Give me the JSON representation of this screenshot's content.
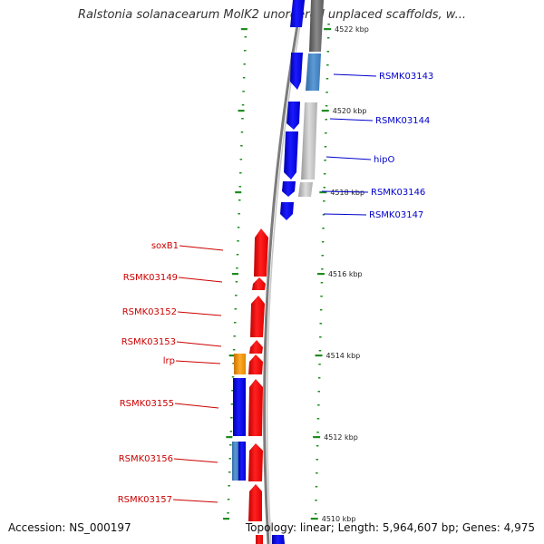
{
  "title": "Ralstonia solanacearum MolK2 unordered unplaced scaffolds, w...",
  "footer": {
    "accession": "Accession: NS_000197",
    "summary": "Topology: linear; Length: 5,964,607 bp; Genes: 4,975"
  },
  "colors": {
    "forward_gene": "#0000ff",
    "forward_gene_dark": "#1a1aa8",
    "reverse_gene": "#ff0000",
    "reverse_gene_dark": "#b30000",
    "rna_gene": "#f0950f",
    "steelblue_gene": "#3f7fbf",
    "gray_gene": "#c0c0c0",
    "dark_gray_gene": "#6d6d6d",
    "ruler": "#1e8c1e",
    "label_forward": "#0000cc",
    "label_reverse": "#cc0000",
    "backbone": "#8a8a8a"
  },
  "ruler_ticks": [
    {
      "kbp": 4522,
      "label": "4522 kbp"
    },
    {
      "kbp": 4520,
      "label": "4520 kbp"
    },
    {
      "kbp": 4518,
      "label": "4518 kbp"
    },
    {
      "kbp": 4516,
      "label": "4516 kbp"
    },
    {
      "kbp": 4514,
      "label": "4514 kbp"
    },
    {
      "kbp": 4512,
      "label": "4512 kbp"
    },
    {
      "kbp": 4510,
      "label": "4510 kbp"
    }
  ],
  "genes_forward": [
    {
      "name": "RSMK03143"
    },
    {
      "name": "RSMK03144"
    },
    {
      "name": "hipO"
    },
    {
      "name": "RSMK03146"
    },
    {
      "name": "RSMK03147"
    }
  ],
  "genes_reverse": [
    {
      "name": "soxB1"
    },
    {
      "name": "RSMK03149"
    },
    {
      "name": "RSMK03152"
    },
    {
      "name": "RSMK03153"
    },
    {
      "name": "lrp"
    },
    {
      "name": "RSMK03155"
    },
    {
      "name": "RSMK03156"
    },
    {
      "name": "RSMK03157"
    }
  ]
}
